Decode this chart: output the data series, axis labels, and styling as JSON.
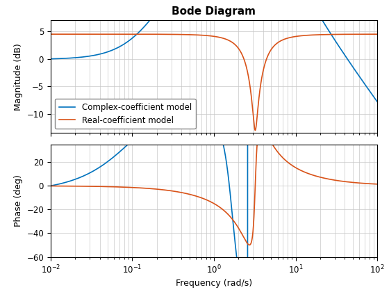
{
  "title": "Bode Diagram",
  "xlabel": "Frequency (rad/s)",
  "ylabel_mag": "Magnitude (dB)",
  "ylabel_phase": "Phase (deg)",
  "freq_range": [
    0.01,
    100
  ],
  "mag_ylim": [
    -13.5,
    7
  ],
  "phase_ylim": [
    -60,
    35
  ],
  "blue_color": "#0072BD",
  "orange_color": "#D95319",
  "legend_labels": [
    "Complex-coefficient model",
    "Real-coefficient model"
  ],
  "title_fontsize": 11,
  "axis_fontsize": 9,
  "tick_fontsize": 8.5,
  "legend_fontsize": 8.5,
  "mag_yticks": [
    -10,
    -5,
    0,
    5
  ],
  "phase_yticks": [
    -60,
    -40,
    -20,
    0,
    20
  ]
}
